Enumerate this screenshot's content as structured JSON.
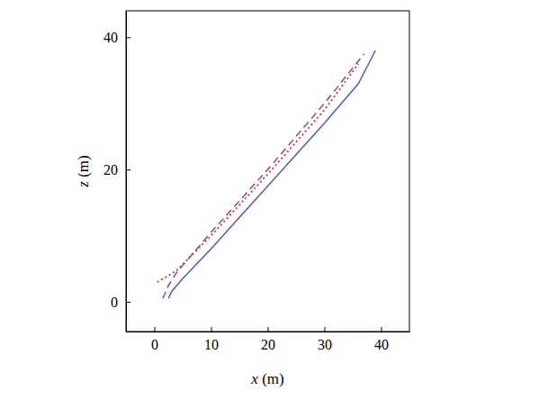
{
  "chart_data": {
    "type": "line",
    "x_label": "x (m)",
    "y_label": "z (m)",
    "xlim": [
      -5,
      45
    ],
    "ylim": [
      -4.5,
      44
    ],
    "xticks": [
      0,
      10,
      20,
      30,
      40
    ],
    "yticks": [
      0,
      20,
      40
    ],
    "series": [
      {
        "color": "#4a50e0",
        "line_style": "solid",
        "x": [
          2.5,
          3,
          5,
          10,
          20,
          30,
          36,
          39
        ],
        "values": [
          0.5,
          1.5,
          3.5,
          8,
          17.5,
          27,
          33,
          38
        ]
      },
      {
        "color": "#8b3a96",
        "line_style": "dashed",
        "x": [
          1.5,
          2.5,
          4,
          10,
          20,
          30,
          37
        ],
        "values": [
          0.5,
          2.5,
          4.5,
          10.5,
          20,
          30,
          37.5
        ]
      },
      {
        "color": "#e0302b",
        "line_style": "dotted",
        "x": [
          0.5,
          2,
          4,
          10,
          20,
          30,
          36
        ],
        "values": [
          3,
          3.7,
          4.8,
          10,
          19.3,
          29,
          36
        ]
      }
    ]
  }
}
